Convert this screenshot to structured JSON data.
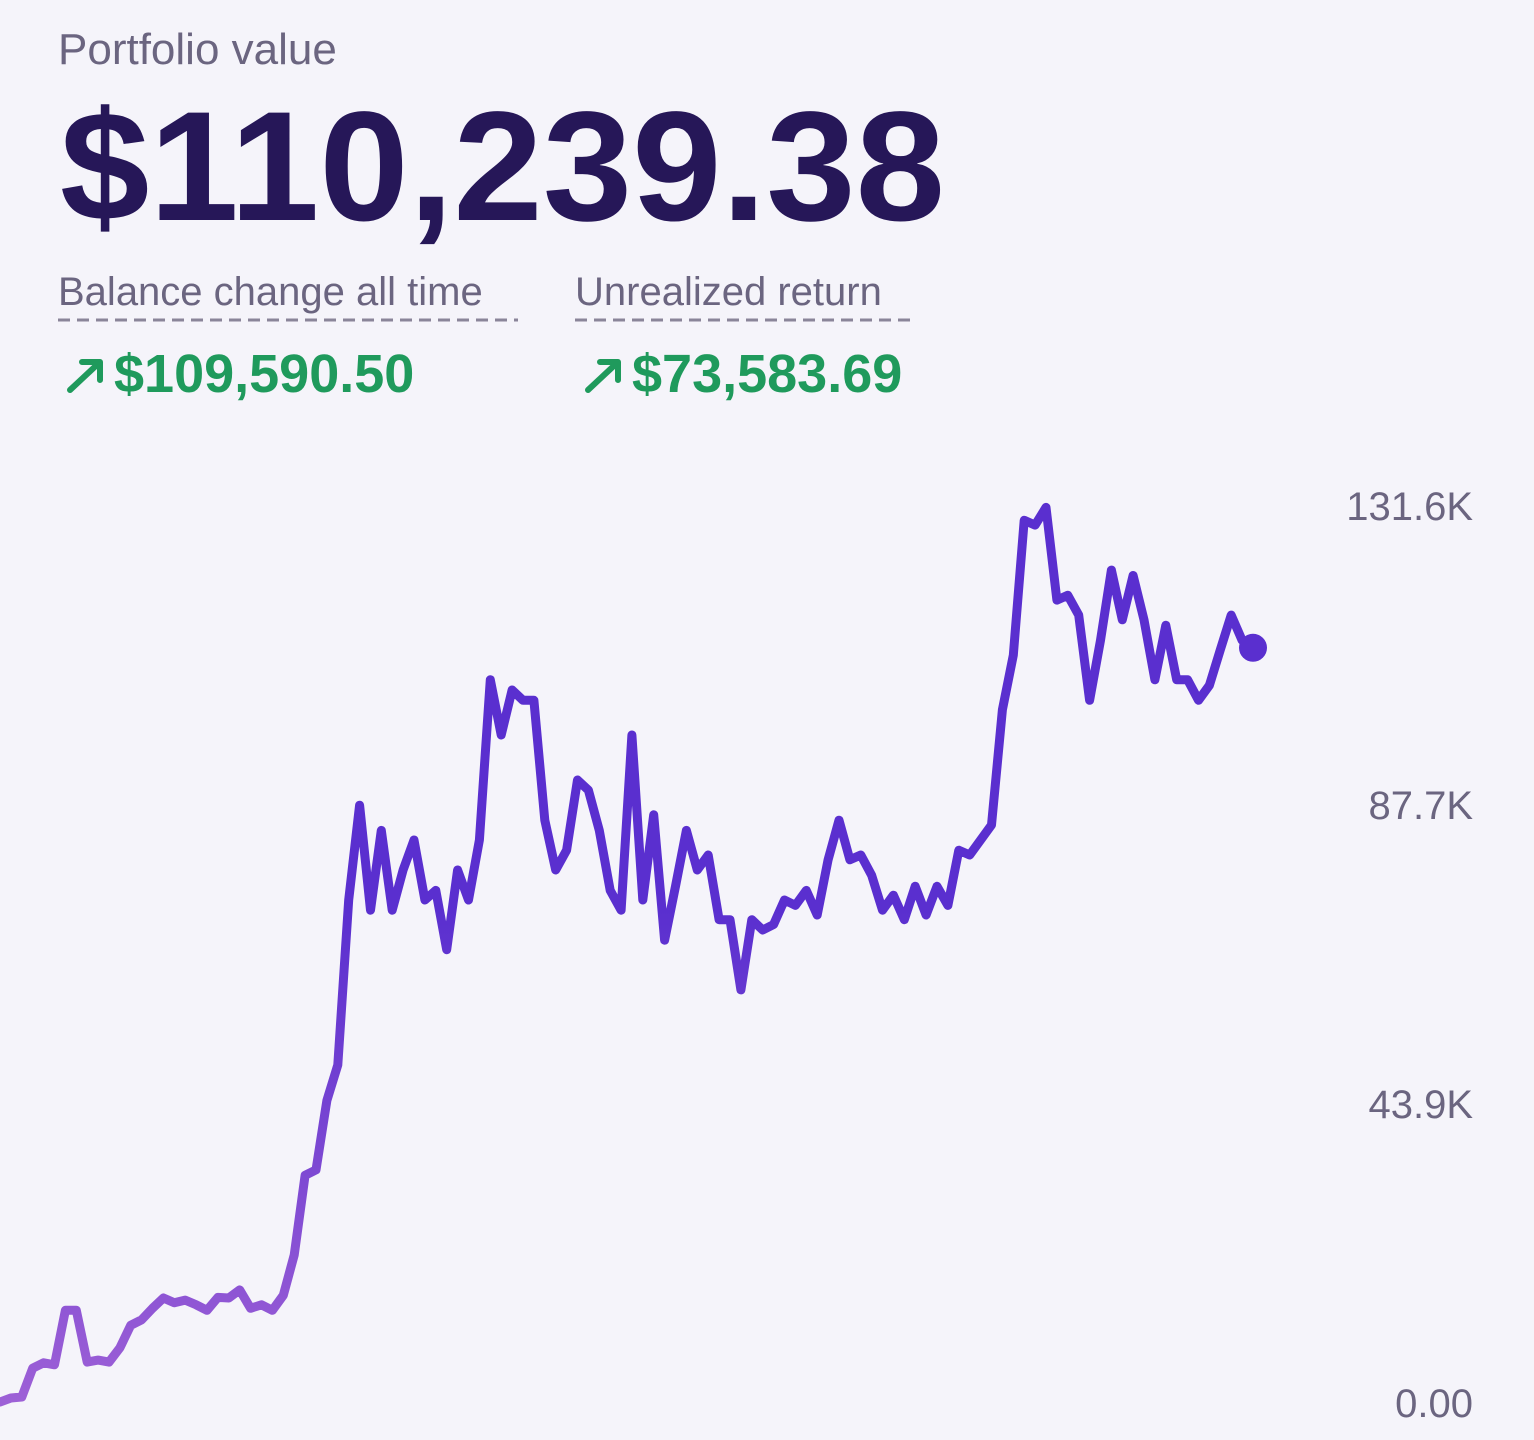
{
  "header": {
    "title": "Portfolio value",
    "value": "$110,239.38",
    "metrics": [
      {
        "label": "Balance change all time",
        "value": "$109,590.50"
      },
      {
        "label": "Unrealized return",
        "value": "$73,583.69"
      }
    ]
  },
  "chart_data": {
    "type": "line",
    "values": [
      150,
      730,
      880,
      5100,
      5900,
      5600,
      13600,
      13600,
      6000,
      6300,
      6000,
      8100,
      11400,
      12200,
      13900,
      15400,
      14700,
      15100,
      14400,
      13600,
      15500,
      15400,
      16600,
      13900,
      14400,
      13600,
      15800,
      21700,
      33400,
      34200,
      44400,
      49600,
      73800,
      87700,
      72300,
      84000,
      72300,
      78200,
      82600,
      73800,
      75200,
      66500,
      78200,
      73800,
      82600,
      106100,
      98000,
      104600,
      103100,
      103100,
      85500,
      78200,
      81100,
      91400,
      89900,
      84000,
      75200,
      72300,
      98000,
      73800,
      86300,
      67900,
      75800,
      84000,
      78200,
      80400,
      70900,
      70900,
      60600,
      70900,
      69400,
      70200,
      73800,
      73000,
      75200,
      71600,
      79700,
      85500,
      79700,
      80400,
      77400,
      72300,
      74500,
      70900,
      75800,
      71600,
      75800,
      73000,
      81100,
      80400,
      82600,
      84800,
      101700,
      109700,
      129500,
      128800,
      131400,
      117800,
      118500,
      115600,
      103100,
      111900,
      122200,
      114900,
      121400,
      114900,
      106100,
      114100,
      106100,
      106100,
      103100,
      105300,
      110500,
      115600,
      111900,
      110800
    ],
    "color": "#5a2fcf",
    "color_low": "#9d60d6",
    "ylim": [
      0,
      131600
    ],
    "yticks": [
      {
        "value": 0,
        "label": "0.00"
      },
      {
        "value": 43900,
        "label": "43.9K"
      },
      {
        "value": 87700,
        "label": "87.7K"
      },
      {
        "value": 131600,
        "label": "131.6K"
      }
    ]
  }
}
